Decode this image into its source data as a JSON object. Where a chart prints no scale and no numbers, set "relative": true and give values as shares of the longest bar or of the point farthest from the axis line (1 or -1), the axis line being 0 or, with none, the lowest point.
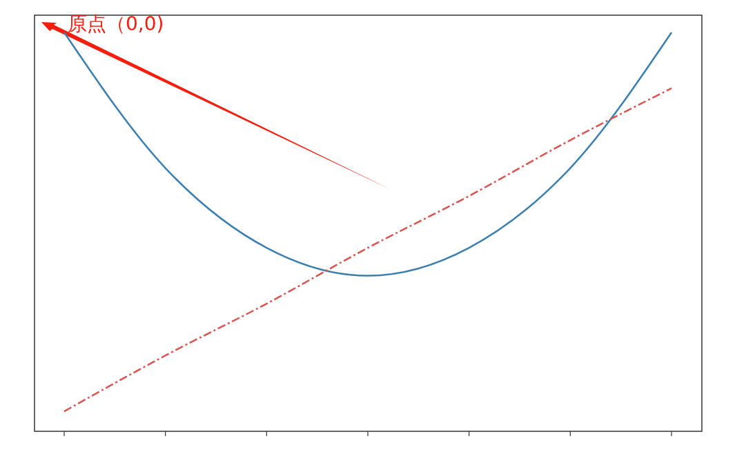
{
  "chart_data": {
    "type": "line",
    "relative": true,
    "categories": [
      null,
      null,
      null,
      null,
      null,
      null,
      null
    ],
    "series": [
      {
        "color": "#3a7fb0",
        "line_style": "solid",
        "values": [
          1,
          0.66,
          0.46,
          0.39,
          0.46,
          0.66,
          1
        ]
      },
      {
        "color": "#d9534f",
        "line_style": "dashdot",
        "values": [
          0.05,
          0.19,
          0.32,
          0.46,
          0.59,
          0.73,
          0.86
        ]
      }
    ],
    "annotations": [
      "原点（0,0)"
    ]
  }
}
